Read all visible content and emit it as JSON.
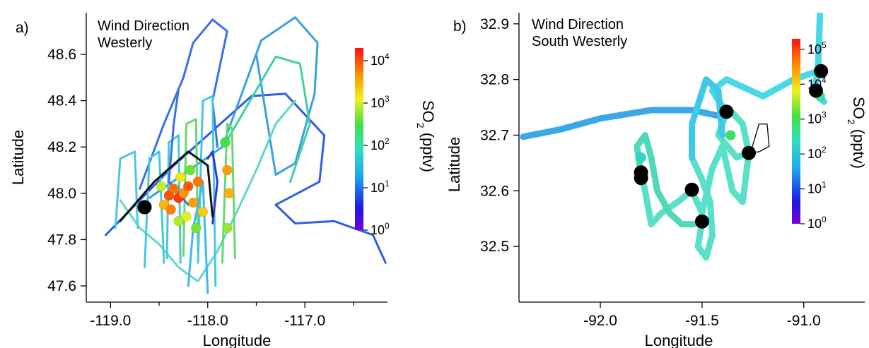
{
  "chart_data": [
    {
      "type": "scatter",
      "panel_label": "a)",
      "annotation": [
        "Wind Direction",
        "Westerly"
      ],
      "xlabel": "Longitude",
      "ylabel": "Latitude",
      "xlim": [
        -119.25,
        -116.15
      ],
      "ylim": [
        47.53,
        48.78
      ],
      "x_ticks": [
        -119.0,
        -118.0,
        -117.0
      ],
      "x_tick_labels": [
        "-119.0",
        "-118.0",
        "-117.0"
      ],
      "x_minor_ticks": [
        -118.5,
        -117.5,
        -116.5
      ],
      "y_ticks": [
        47.6,
        47.8,
        48.0,
        48.2,
        48.4,
        48.6
      ],
      "y_tick_labels": [
        "47.6",
        "47.8",
        "48.0",
        "48.2",
        "48.4",
        "48.6"
      ],
      "colorbar": {
        "label": "SO",
        "label_sub": "2",
        "label_unit": " (pptv)",
        "scale": "log",
        "range_exp": [
          0,
          4.3
        ],
        "tick_exps": [
          0,
          1,
          2,
          3,
          4
        ],
        "tick_base": "10",
        "tick_sups": [
          "0",
          "1",
          "2",
          "3",
          "4"
        ]
      },
      "flight_tracks": [
        {
          "color": "#2c5ee8",
          "points": [
            [
              -119.05,
              47.82
            ],
            [
              -118.35,
              48.12
            ],
            [
              -117.55,
              48.42
            ],
            [
              -117.2,
              48.43
            ],
            [
              -116.8,
              48.25
            ],
            [
              -116.85,
              48.05
            ],
            [
              -117.3,
              47.95
            ],
            [
              -117.1,
              47.87
            ],
            [
              -116.7,
              47.88
            ],
            [
              -116.3,
              47.82
            ],
            [
              -116.17,
              47.7
            ]
          ]
        },
        {
          "color": "#3aa0e0",
          "points": [
            [
              -118.6,
              47.98
            ],
            [
              -117.85,
              48.2
            ],
            [
              -117.45,
              48.66
            ],
            [
              -117.1,
              48.76
            ],
            [
              -116.87,
              48.65
            ],
            [
              -116.9,
              48.43
            ],
            [
              -117.1,
              48.13
            ],
            [
              -117.3,
              48.08
            ],
            [
              -117.5,
              48.6
            ]
          ]
        },
        {
          "color": "#3fd0a0",
          "points": [
            [
              -117.8,
              48.23
            ],
            [
              -117.3,
              48.59
            ],
            [
              -117.05,
              48.56
            ],
            [
              -116.95,
              48.3
            ],
            [
              -117.15,
              48.05
            ]
          ]
        },
        {
          "color": "#3a6fe8",
          "points": [
            [
              -118.7,
              48.02
            ],
            [
              -118.45,
              48.3
            ],
            [
              -118.25,
              48.5
            ],
            [
              -118.15,
              48.65
            ],
            [
              -117.95,
              48.75
            ],
            [
              -117.8,
              48.7
            ],
            [
              -117.95,
              48.4
            ],
            [
              -117.9,
              48.2
            ]
          ]
        },
        {
          "color": "#5fd8c8",
          "points": [
            [
              -118.9,
              47.97
            ],
            [
              -118.7,
              47.85
            ],
            [
              -118.5,
              47.78
            ],
            [
              -118.3,
              47.68
            ],
            [
              -118.1,
              47.62
            ],
            [
              -117.9,
              47.75
            ],
            [
              -117.7,
              47.92
            ],
            [
              -117.5,
              48.1
            ],
            [
              -117.3,
              48.3
            ],
            [
              -117.1,
              48.4
            ]
          ]
        },
        {
          "color": "#48c8e0",
          "points": [
            [
              -118.95,
              47.85
            ],
            [
              -118.9,
              48.15
            ],
            [
              -118.75,
              48.18
            ],
            [
              -118.72,
              47.85
            ]
          ]
        },
        {
          "color": "#48c8e0",
          "points": [
            [
              -118.65,
              47.68
            ],
            [
              -118.6,
              48.15
            ],
            [
              -118.5,
              48.18
            ],
            [
              -118.45,
              47.7
            ]
          ]
        },
        {
          "color": "#48c8e0",
          "points": [
            [
              -118.42,
              47.72
            ],
            [
              -118.4,
              48.22
            ],
            [
              -118.3,
              48.25
            ],
            [
              -118.28,
              47.7
            ]
          ]
        },
        {
          "color": "#6ad870",
          "points": [
            [
              -118.25,
              47.73
            ],
            [
              -118.22,
              48.3
            ],
            [
              -118.12,
              48.32
            ],
            [
              -118.1,
              47.75
            ]
          ]
        },
        {
          "color": "#48c8e0",
          "points": [
            [
              -118.1,
              47.7
            ],
            [
              -118.05,
              48.4
            ],
            [
              -117.95,
              48.42
            ],
            [
              -117.92,
              47.6
            ]
          ]
        },
        {
          "color": "#6ad870",
          "points": [
            [
              -117.85,
              47.7
            ],
            [
              -117.8,
              48.3
            ],
            [
              -117.75,
              48.28
            ],
            [
              -117.72,
              47.72
            ]
          ]
        },
        {
          "color": "#3a6fe8",
          "points": [
            [
              -118.3,
              48.45
            ],
            [
              -118.35,
              48.3
            ],
            [
              -118.4,
              48.05
            ],
            [
              -118.2,
              47.95
            ]
          ]
        },
        {
          "color": "#40b8e8",
          "points": [
            [
              -118.2,
              47.6
            ],
            [
              -118.15,
              47.85
            ],
            [
              -118.05,
              48.05
            ],
            [
              -118.0,
              47.57
            ]
          ]
        },
        {
          "color": "#2a3ad0",
          "points": [
            [
              -118.0,
              48.15
            ],
            [
              -117.95,
              48.18
            ],
            [
              -117.9,
              48.05
            ],
            [
              -117.95,
              47.87
            ]
          ]
        },
        {
          "color": "#111111",
          "points": [
            [
              -118.9,
              47.88
            ],
            [
              -118.55,
              48.05
            ],
            [
              -118.2,
              48.18
            ],
            [
              -118.0,
              48.12
            ],
            [
              -117.95,
              47.9
            ]
          ]
        }
      ],
      "so2_points": [
        {
          "lon": -118.4,
          "lat": 47.99,
          "so2": 12000
        },
        {
          "lon": -118.35,
          "lat": 48.02,
          "so2": 9000
        },
        {
          "lon": -118.3,
          "lat": 47.98,
          "so2": 15000
        },
        {
          "lon": -118.25,
          "lat": 48.0,
          "so2": 7000
        },
        {
          "lon": -118.2,
          "lat": 48.03,
          "so2": 11000
        },
        {
          "lon": -118.45,
          "lat": 47.95,
          "so2": 5000
        },
        {
          "lon": -118.38,
          "lat": 47.93,
          "so2": 8000
        },
        {
          "lon": -118.15,
          "lat": 47.96,
          "so2": 6000
        },
        {
          "lon": -118.1,
          "lat": 48.05,
          "so2": 9000
        },
        {
          "lon": -118.05,
          "lat": 47.92,
          "so2": 4000
        },
        {
          "lon": -118.28,
          "lat": 48.07,
          "so2": 3000
        },
        {
          "lon": -118.48,
          "lat": 48.03,
          "so2": 2000
        },
        {
          "lon": -118.22,
          "lat": 47.9,
          "so2": 2500
        },
        {
          "lon": -117.8,
          "lat": 48.1,
          "so2": 6000
        },
        {
          "lon": -117.78,
          "lat": 48.0,
          "so2": 5000
        },
        {
          "lon": -117.8,
          "lat": 47.85,
          "so2": 1500
        },
        {
          "lon": -117.82,
          "lat": 48.22,
          "so2": 800
        },
        {
          "lon": -118.12,
          "lat": 47.85,
          "so2": 1200
        },
        {
          "lon": -118.3,
          "lat": 47.88,
          "so2": 1800
        },
        {
          "lon": -118.18,
          "lat": 48.1,
          "so2": 1100
        }
      ],
      "markers": [
        {
          "lon": -118.65,
          "lat": 47.94
        }
      ]
    },
    {
      "type": "scatter",
      "panel_label": "b)",
      "annotation": [
        "Wind Direction",
        "South Westerly"
      ],
      "xlabel": "Longitude",
      "ylabel": "Latitude",
      "xlim": [
        -92.4,
        -90.7
      ],
      "ylim": [
        32.4,
        32.92
      ],
      "x_ticks": [
        -92.0,
        -91.5,
        -91.0
      ],
      "x_tick_labels": [
        "-92.0",
        "-91.5",
        "-91.0"
      ],
      "y_ticks": [
        32.5,
        32.6,
        32.7,
        32.8,
        32.9
      ],
      "y_tick_labels": [
        "32.5",
        "32.6",
        "32.7",
        "32.8",
        "32.9"
      ],
      "colorbar": {
        "label": "SO",
        "label_sub": "2",
        "label_unit": " (pptv)",
        "scale": "log",
        "range_exp": [
          0,
          5.3
        ],
        "tick_exps": [
          0,
          1,
          2,
          3,
          4,
          5
        ],
        "tick_base": "10",
        "tick_sups": [
          "0",
          "1",
          "2",
          "3",
          "4",
          "5"
        ]
      },
      "flight_tracks": [
        {
          "color": "#3aa8e8",
          "width": 9,
          "points": [
            [
              -92.38,
              32.697
            ],
            [
              -92.2,
              32.71
            ],
            [
              -92.0,
              32.73
            ],
            [
              -91.75,
              32.745
            ],
            [
              -91.55,
              32.745
            ],
            [
              -91.42,
              32.735
            ],
            [
              -91.38,
              32.74
            ]
          ]
        },
        {
          "color": "#48d8e8",
          "width": 9,
          "points": [
            [
              -91.38,
              32.74
            ],
            [
              -91.45,
              32.78
            ],
            [
              -91.38,
              32.8
            ],
            [
              -91.2,
              32.77
            ],
            [
              -91.05,
              32.8
            ],
            [
              -90.93,
              32.815
            ],
            [
              -90.92,
              32.92
            ]
          ]
        },
        {
          "color": "#48d8e8",
          "width": 9,
          "points": [
            [
              -90.93,
              32.815
            ],
            [
              -90.95,
              32.78
            ],
            [
              -90.9,
              32.76
            ]
          ]
        },
        {
          "color": "#58e0c8",
          "width": 9,
          "points": [
            [
              -91.38,
              32.74
            ],
            [
              -91.42,
              32.7
            ],
            [
              -91.33,
              32.66
            ],
            [
              -91.27,
              32.668
            ],
            [
              -91.3,
              32.72
            ],
            [
              -91.35,
              32.74
            ]
          ]
        },
        {
          "color": "#58e0c8",
          "width": 9,
          "points": [
            [
              -91.27,
              32.668
            ],
            [
              -91.3,
              32.58
            ],
            [
              -91.35,
              32.6
            ],
            [
              -91.4,
              32.68
            ],
            [
              -91.45,
              32.64
            ],
            [
              -91.5,
              32.56
            ],
            [
              -91.55,
              32.6
            ]
          ]
        },
        {
          "color": "#58e0c8",
          "width": 9,
          "points": [
            [
              -91.55,
              32.6
            ],
            [
              -91.62,
              32.58
            ],
            [
              -91.7,
              32.56
            ],
            [
              -91.75,
              32.54
            ],
            [
              -91.78,
              32.6
            ],
            [
              -91.8,
              32.63
            ]
          ]
        },
        {
          "color": "#50d8b8",
          "width": 9,
          "points": [
            [
              -91.8,
              32.63
            ],
            [
              -91.82,
              32.68
            ],
            [
              -91.78,
              32.7
            ],
            [
              -91.75,
              32.66
            ],
            [
              -91.72,
              32.6
            ],
            [
              -91.66,
              32.56
            ],
            [
              -91.6,
              32.54
            ],
            [
              -91.54,
              32.54
            ]
          ]
        },
        {
          "color": "#58e0c8",
          "width": 9,
          "points": [
            [
              -91.5,
              32.545
            ],
            [
              -91.52,
              32.5
            ],
            [
              -91.48,
              32.48
            ],
            [
              -91.45,
              32.52
            ],
            [
              -91.46,
              32.58
            ],
            [
              -91.5,
              32.62
            ],
            [
              -91.55,
              32.66
            ]
          ]
        },
        {
          "color": "#40c8e8",
          "width": 9,
          "points": [
            [
              -91.55,
              32.66
            ],
            [
              -91.55,
              32.72
            ],
            [
              -91.48,
              32.8
            ],
            [
              -91.42,
              32.78
            ],
            [
              -91.4,
              32.7
            ]
          ]
        },
        {
          "color": "#111111",
          "width": 1.4,
          "points": [
            [
              -91.27,
              32.668
            ],
            [
              -91.22,
              32.67
            ],
            [
              -91.17,
              32.68
            ],
            [
              -91.18,
              32.72
            ],
            [
              -91.22,
              32.72
            ],
            [
              -91.26,
              32.67
            ]
          ]
        }
      ],
      "so2_points": [
        {
          "lon": -91.8,
          "lat": 32.66,
          "so2": 250
        },
        {
          "lon": -91.36,
          "lat": 32.7,
          "so2": 600
        },
        {
          "lon": -90.92,
          "lat": 32.77,
          "so2": 400
        }
      ],
      "markers": [
        {
          "lon": -91.38,
          "lat": 32.742
        },
        {
          "lon": -90.915,
          "lat": 32.815
        },
        {
          "lon": -90.94,
          "lat": 32.78
        },
        {
          "lon": -91.27,
          "lat": 32.668
        },
        {
          "lon": -91.8,
          "lat": 32.633
        },
        {
          "lon": -91.8,
          "lat": 32.623
        },
        {
          "lon": -91.55,
          "lat": 32.602
        },
        {
          "lon": -91.5,
          "lat": 32.545
        }
      ]
    }
  ]
}
